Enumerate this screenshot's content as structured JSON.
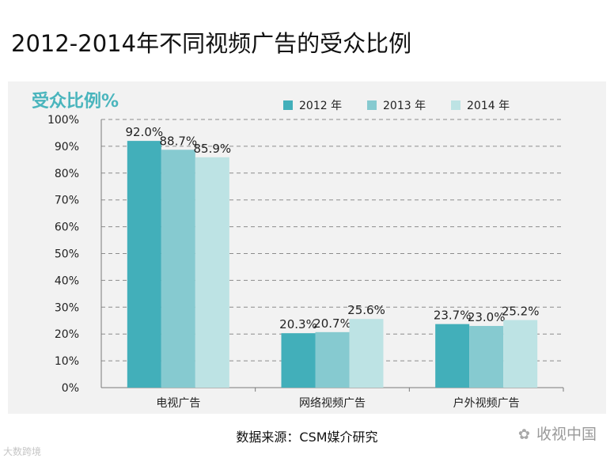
{
  "page_title": "2012-2014年不同视频广告的受众比例",
  "source_note": "数据来源：CSM媒介研究",
  "watermark": "收视中国",
  "watermark_left": "大数跨境",
  "colors": {
    "s2012": "#42afba",
    "s2013": "#86cad0",
    "s2014": "#bde3e4",
    "heading": "#4ab5bd"
  },
  "chart_data": {
    "type": "bar",
    "heading": "受众比例%",
    "categories": [
      "电视广告",
      "网络视频广告",
      "户外视频广告"
    ],
    "series": [
      {
        "name": "2012 年",
        "values": [
          92.0,
          20.3,
          23.7
        ],
        "labels": [
          "92.0%",
          "20.3%",
          "23.7%"
        ]
      },
      {
        "name": "2013 年",
        "values": [
          88.7,
          20.7,
          23.0
        ],
        "labels": [
          "88.7%",
          "20.7%",
          "23.0%"
        ]
      },
      {
        "name": "2014 年",
        "values": [
          85.9,
          25.6,
          25.2
        ],
        "labels": [
          "85.9%",
          "25.6%",
          "25.2%"
        ]
      }
    ],
    "ylim": [
      0,
      100
    ],
    "yticks": [
      "0%",
      "10%",
      "20%",
      "30%",
      "40%",
      "50%",
      "60%",
      "70%",
      "80%",
      "90%",
      "100%"
    ],
    "grid": true,
    "legend": "top"
  }
}
